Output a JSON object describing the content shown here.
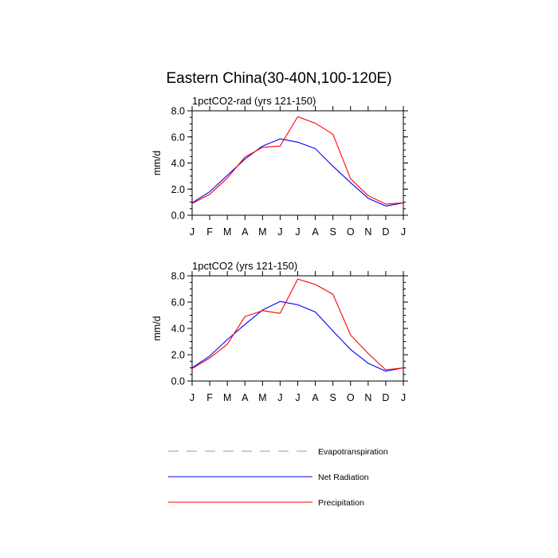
{
  "figure": {
    "title": "Eastern China(30-40N,100-120E)"
  },
  "chart_data": [
    {
      "type": "line",
      "title": "1pctCO2-rad (yrs 121-150)",
      "xlabel": "",
      "ylabel": "mm/d",
      "categories": [
        "J",
        "F",
        "M",
        "A",
        "M",
        "J",
        "J",
        "A",
        "S",
        "O",
        "N",
        "D",
        "J"
      ],
      "ylim": [
        0,
        8
      ],
      "yticks": [
        "0.0",
        "2.0",
        "4.0",
        "6.0",
        "8.0"
      ],
      "series": [
        {
          "name": "Net Radiation",
          "color": "#0000ff",
          "values": [
            0.95,
            1.8,
            3.05,
            4.3,
            5.3,
            5.85,
            5.6,
            5.1,
            3.75,
            2.5,
            1.3,
            0.7,
            0.95
          ]
        },
        {
          "name": "Precipitation",
          "color": "#ff0000",
          "values": [
            0.9,
            1.6,
            2.85,
            4.45,
            5.2,
            5.3,
            7.55,
            7.05,
            6.2,
            2.8,
            1.5,
            0.85,
            0.95
          ]
        }
      ]
    },
    {
      "type": "line",
      "title": "1pctCO2 (yrs 121-150)",
      "xlabel": "",
      "ylabel": "mm/d",
      "categories": [
        "J",
        "F",
        "M",
        "A",
        "M",
        "J",
        "J",
        "A",
        "S",
        "O",
        "N",
        "D",
        "J"
      ],
      "ylim": [
        0,
        8
      ],
      "yticks": [
        "0.0",
        "2.0",
        "4.0",
        "6.0",
        "8.0"
      ],
      "series": [
        {
          "name": "Net Radiation",
          "color": "#0000ff",
          "values": [
            1.0,
            1.9,
            3.15,
            4.3,
            5.4,
            6.05,
            5.8,
            5.25,
            3.8,
            2.4,
            1.35,
            0.75,
            1.0
          ]
        },
        {
          "name": "Precipitation",
          "color": "#ff0000",
          "values": [
            0.95,
            1.75,
            2.8,
            4.9,
            5.35,
            5.15,
            7.75,
            7.35,
            6.6,
            3.5,
            2.1,
            0.85,
            1.0
          ]
        }
      ]
    }
  ],
  "legend": {
    "placement": "bottom",
    "items": [
      {
        "label": "Evapotranspiration",
        "color": "#999999",
        "dash": "dashed"
      },
      {
        "label": "Net Radiation",
        "color": "#0000ff",
        "dash": "solid"
      },
      {
        "label": "Precipitation",
        "color": "#ff0000",
        "dash": "solid"
      }
    ]
  }
}
